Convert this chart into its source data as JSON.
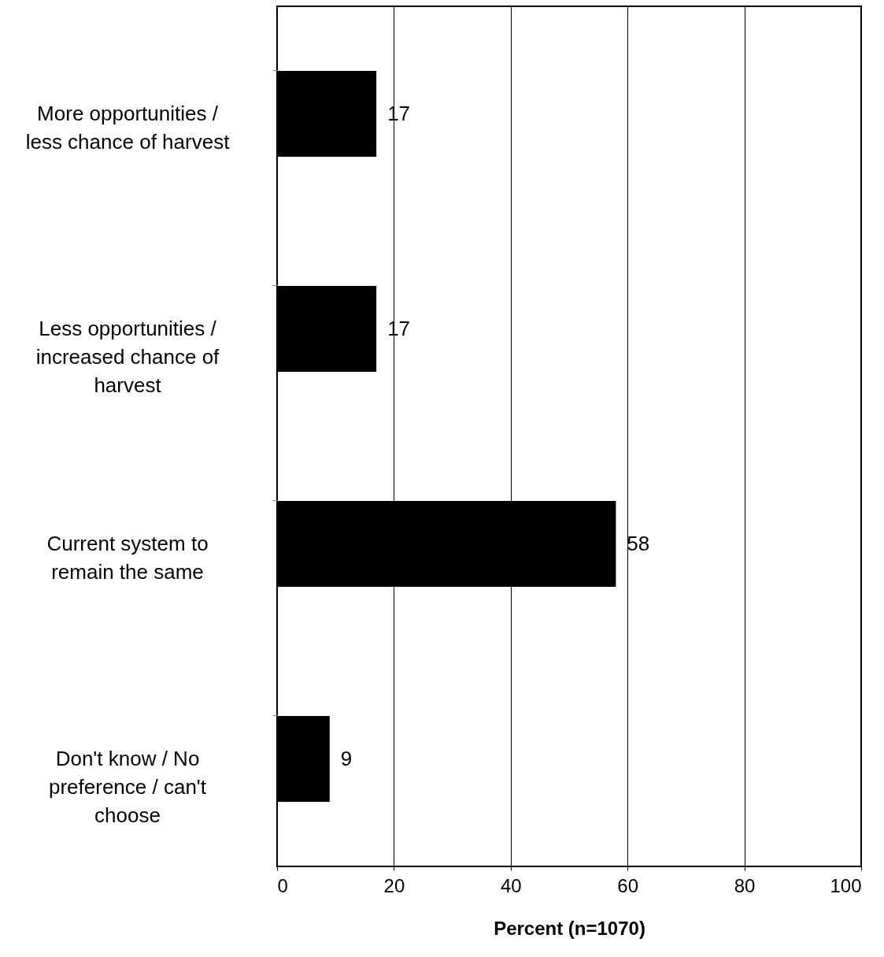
{
  "chart_data": {
    "type": "bar",
    "orientation": "horizontal",
    "xlabel": "Percent (n=1070)",
    "categories": [
      "More opportunities / less chance of harvest",
      "Less opportunities / increased chance of harvest",
      "Current system to remain the same",
      "Don't know / No preference / can't choose"
    ],
    "values": [
      17,
      17,
      58,
      9
    ],
    "color": "#000000",
    "data_labels": true,
    "xlim": [
      0,
      100
    ],
    "xticks": [
      0,
      20,
      40,
      60,
      80,
      100
    ],
    "grid": "x",
    "legend": false
  }
}
